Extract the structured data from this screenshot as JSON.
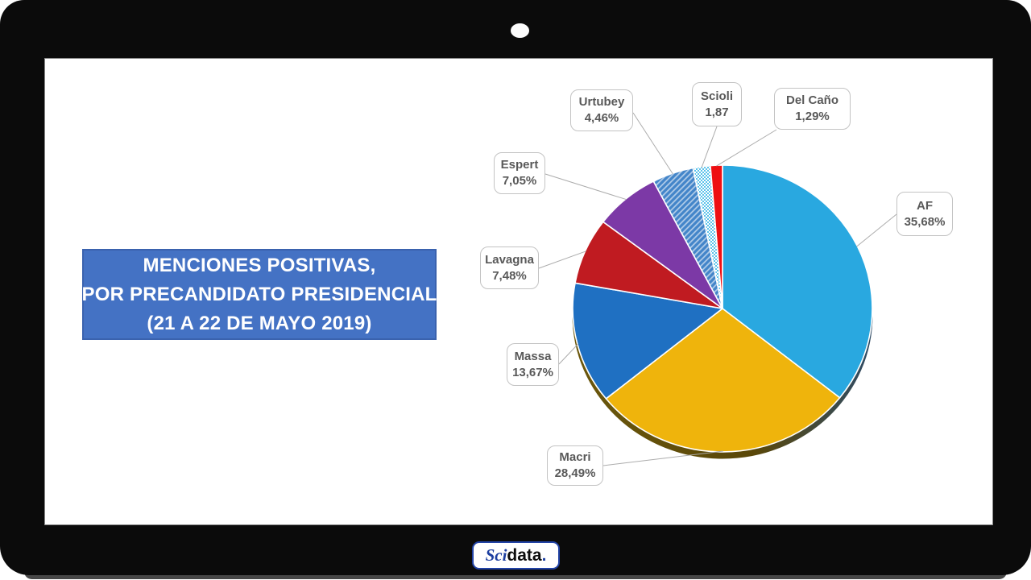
{
  "frame": {
    "brand_badge": {
      "prefix": "Sci",
      "suffix": "data",
      "dot": "."
    }
  },
  "title_box": {
    "line1": "MENCIONES POSITIVAS,",
    "line2": "POR PRECANDIDATO PRESIDENCIAL",
    "line3": "(21 A 22 DE MAYO 2019)",
    "background": "#4472C4",
    "text_color": "#FFFFFF"
  },
  "chart_data": {
    "type": "pie",
    "title": "MENCIONES POSITIVAS, POR PRECANDIDATO PRESIDENCIAL (21 A 22 DE MAYO 2019)",
    "unit": "percent",
    "direction": "clockwise",
    "start_angle_deg": 0,
    "effect": "3d-bottom-shadow",
    "legend_position": "callout-boxes-with-leader-lines",
    "slices": [
      {
        "label": "AF",
        "value": 35.68,
        "display": "35,68%",
        "color": "#29A8E0",
        "pattern": "solid"
      },
      {
        "label": "Macri",
        "value": 28.49,
        "display": "28,49%",
        "color": "#EFB40C",
        "pattern": "solid"
      },
      {
        "label": "Massa",
        "value": 13.67,
        "display": "13,67%",
        "color": "#1F70C2",
        "pattern": "solid"
      },
      {
        "label": "Lavagna",
        "value": 7.48,
        "display": "7,48%",
        "color": "#C01B21",
        "pattern": "solid"
      },
      {
        "label": "Espert",
        "value": 7.05,
        "display": "7,05%",
        "color": "#7C39A6",
        "pattern": "solid"
      },
      {
        "label": "Urtubey",
        "value": 4.46,
        "display": "4,46%",
        "color": "#4385C9",
        "pattern": "diagonal-hatch"
      },
      {
        "label": "Scioli",
        "value": 1.87,
        "display": "1,87",
        "color": "#5BC2EA",
        "pattern": "fine-checker"
      },
      {
        "label": "Del Caño",
        "value": 1.29,
        "display": "1,29%",
        "color": "#EE0F12",
        "pattern": "solid"
      }
    ],
    "shadow_color": "#5A4708"
  }
}
